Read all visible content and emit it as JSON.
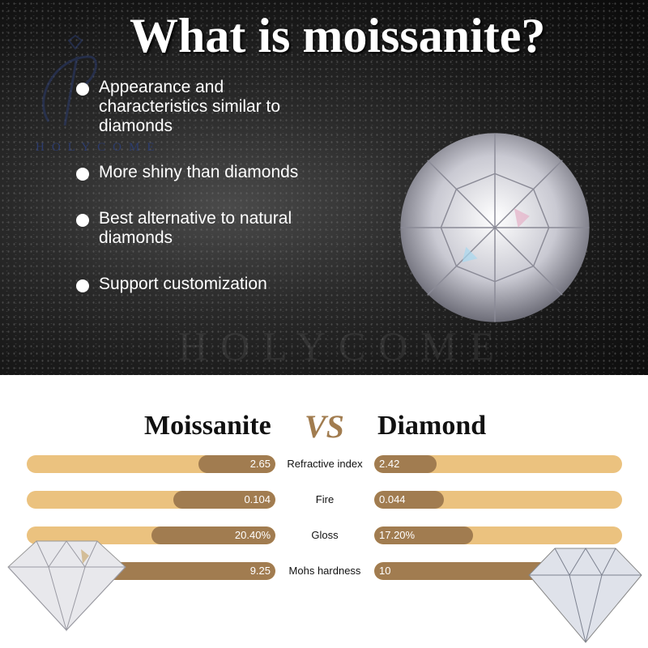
{
  "hero": {
    "title": "What is moissanite?",
    "logo_text": "HOLYCOME",
    "watermark": "HOLYCOME",
    "bullets": [
      "Appearance and characteristics similar to diamonds",
      "More shiny than diamonds",
      "Best alternative to natural diamonds",
      "Support customization"
    ]
  },
  "comparison": {
    "left_title": "Moissanite",
    "vs": "VS",
    "right_title": "Diamond",
    "colors": {
      "bar_track": "#ebc27f",
      "bar_fill": "#a17c50"
    },
    "rows": [
      {
        "label": "Refractive index",
        "left": "2.65",
        "right": "2.42",
        "left_fill": 0.31,
        "right_fill": 0.25
      },
      {
        "label": "Fire",
        "left": "0.104",
        "right": "0.044",
        "left_fill": 0.41,
        "right_fill": 0.28
      },
      {
        "label": "Gloss",
        "left": "20.40%",
        "right": "17.20%",
        "left_fill": 0.5,
        "right_fill": 0.4
      },
      {
        "label": "Mohs hardness",
        "left": "9.25",
        "right": "10",
        "left_fill": 1.0,
        "right_fill": 1.0
      }
    ]
  }
}
